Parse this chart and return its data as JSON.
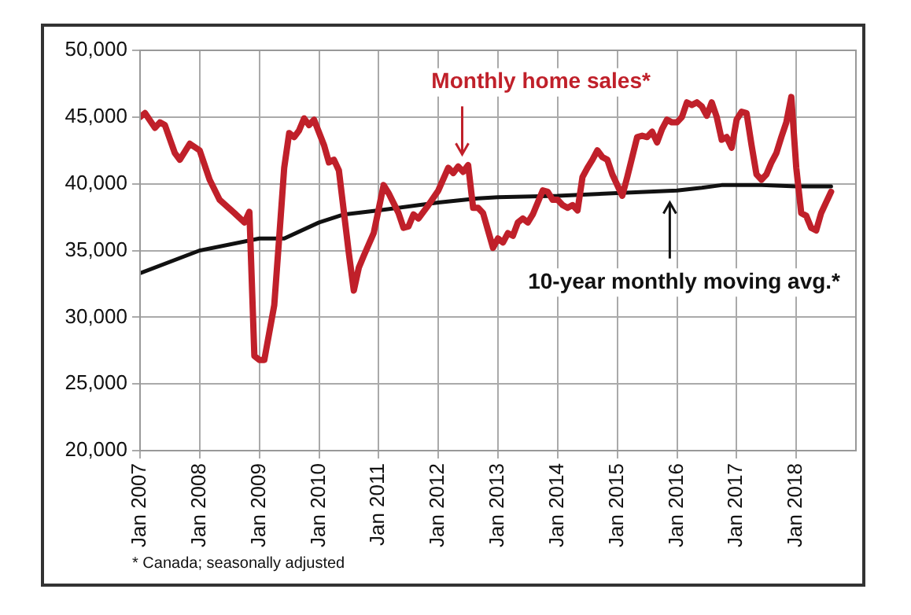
{
  "chart_data": {
    "type": "line",
    "x": [
      "2007-01",
      "2007-02",
      "2007-04",
      "2007-05",
      "2007-06",
      "2007-08",
      "2007-09",
      "2007-11",
      "2008-01",
      "2008-03",
      "2008-05",
      "2008-08",
      "2008-10",
      "2008-11",
      "2008-12",
      "2009-01",
      "2009-02",
      "2009-04",
      "2009-05",
      "2009-06",
      "2009-07",
      "2009-08",
      "2009-09",
      "2009-10",
      "2009-11",
      "2009-12",
      "2010-02",
      "2010-03",
      "2010-04",
      "2010-05",
      "2010-07",
      "2010-08",
      "2010-09",
      "2010-10",
      "2010-12",
      "2011-02",
      "2011-03",
      "2011-05",
      "2011-06",
      "2011-07",
      "2011-08",
      "2011-09",
      "2011-11",
      "2012-01",
      "2012-03",
      "2012-04",
      "2012-05",
      "2012-06",
      "2012-07",
      "2012-08",
      "2012-09",
      "2012-10",
      "2012-11",
      "2012-12",
      "2013-01",
      "2013-02",
      "2013-03",
      "2013-04",
      "2013-05",
      "2013-06",
      "2013-07",
      "2013-08",
      "2013-09",
      "2013-10",
      "2013-11",
      "2013-12",
      "2014-01",
      "2014-02",
      "2014-03",
      "2014-04",
      "2014-05",
      "2014-06",
      "2014-07",
      "2014-08",
      "2014-09",
      "2014-10",
      "2014-11",
      "2014-12",
      "2015-02",
      "2015-03",
      "2015-04",
      "2015-05",
      "2015-06",
      "2015-07",
      "2015-08",
      "2015-09",
      "2015-10",
      "2015-11",
      "2015-12",
      "2016-01",
      "2016-02",
      "2016-03",
      "2016-04",
      "2016-05",
      "2016-06",
      "2016-07",
      "2016-08",
      "2016-09",
      "2016-10",
      "2016-11",
      "2016-12",
      "2017-01",
      "2017-02",
      "2017-03",
      "2017-04",
      "2017-05",
      "2017-06",
      "2017-07",
      "2017-08",
      "2017-09",
      "2017-10",
      "2017-11",
      "2017-12",
      "2018-01",
      "2018-02",
      "2018-03",
      "2018-04",
      "2018-05",
      "2018-06",
      "2018-07",
      "2018-08"
    ],
    "series": [
      {
        "name": "Monthly home sales*",
        "color": "#c0202a",
        "values": [
          45000,
          45300,
          44200,
          44600,
          44400,
          42300,
          41800,
          43000,
          42500,
          40300,
          38800,
          37800,
          37100,
          37900,
          27100,
          26800,
          26800,
          30900,
          36000,
          41200,
          43800,
          43500,
          44000,
          44900,
          44400,
          44800,
          42900,
          41600,
          41800,
          41000,
          34800,
          32000,
          33700,
          34600,
          36300,
          39900,
          39300,
          37800,
          36700,
          36800,
          37700,
          37400,
          38400,
          39500,
          41200,
          40800,
          41300,
          40900,
          41400,
          38200,
          38200,
          37800,
          36500,
          35200,
          35900,
          35600,
          36300,
          36100,
          37100,
          37400,
          37100,
          37700,
          38600,
          39500,
          39400,
          38800,
          38800,
          38400,
          38200,
          38400,
          38000,
          40500,
          41200,
          41800,
          42500,
          42000,
          41800,
          40700,
          39100,
          40500,
          42000,
          43500,
          43600,
          43500,
          43900,
          43100,
          44100,
          44800,
          44600,
          44600,
          45000,
          46100,
          45900,
          46100,
          45800,
          45100,
          46100,
          45000,
          43300,
          43500,
          42700,
          44800,
          45400,
          45300,
          42900,
          40700,
          40300,
          40700,
          41600,
          42300,
          43500,
          44600,
          46500,
          41200,
          37800,
          37600,
          36700,
          36500,
          37800,
          38600,
          39400
        ]
      },
      {
        "name": "10-year monthly moving avg.*",
        "color": "#111111",
        "x": [
          "2007-01",
          "2008-01",
          "2009-01",
          "2009-06",
          "2010-01",
          "2010-06",
          "2011-01",
          "2012-01",
          "2012-09",
          "2013-01",
          "2014-01",
          "2015-01",
          "2016-01",
          "2016-06",
          "2016-10",
          "2017-06",
          "2018-01",
          "2018-08"
        ],
        "values": [
          33300,
          35000,
          35900,
          35900,
          37100,
          37700,
          38000,
          38600,
          38900,
          39000,
          39100,
          39300,
          39500,
          39700,
          39900,
          39900,
          39800,
          39800
        ]
      }
    ],
    "xlim": [
      "2007-01",
      "2019-01"
    ],
    "xticks": [
      {
        "value": "2007-01",
        "label": "Jan 2007"
      },
      {
        "value": "2008-01",
        "label": "Jan 2008"
      },
      {
        "value": "2009-01",
        "label": "Jan 2009"
      },
      {
        "value": "2010-01",
        "label": "Jan 2010"
      },
      {
        "value": "2011-01",
        "label": "Jan 2011"
      },
      {
        "value": "2012-01",
        "label": "Jan 2012"
      },
      {
        "value": "2013-01",
        "label": "Jan 2013"
      },
      {
        "value": "2014-01",
        "label": "Jan 2014"
      },
      {
        "value": "2015-01",
        "label": "Jan 2015"
      },
      {
        "value": "2016-01",
        "label": "Jan 2016"
      },
      {
        "value": "2017-01",
        "label": "Jan 2017"
      },
      {
        "value": "2018-01",
        "label": "Jan 2018"
      }
    ],
    "ylim": [
      20000,
      50000
    ],
    "yticks": [
      {
        "value": 20000,
        "label": "20,000"
      },
      {
        "value": 25000,
        "label": "25,000"
      },
      {
        "value": 30000,
        "label": "30,000"
      },
      {
        "value": 35000,
        "label": "35,000"
      },
      {
        "value": 40000,
        "label": "40,000"
      },
      {
        "value": 45000,
        "label": "45,000"
      },
      {
        "value": 50000,
        "label": "50,000"
      }
    ],
    "annotations": [
      "* Canada; seasonally adjusted"
    ],
    "grid": true,
    "legend": false,
    "marker": "none",
    "line_style": "solid"
  }
}
